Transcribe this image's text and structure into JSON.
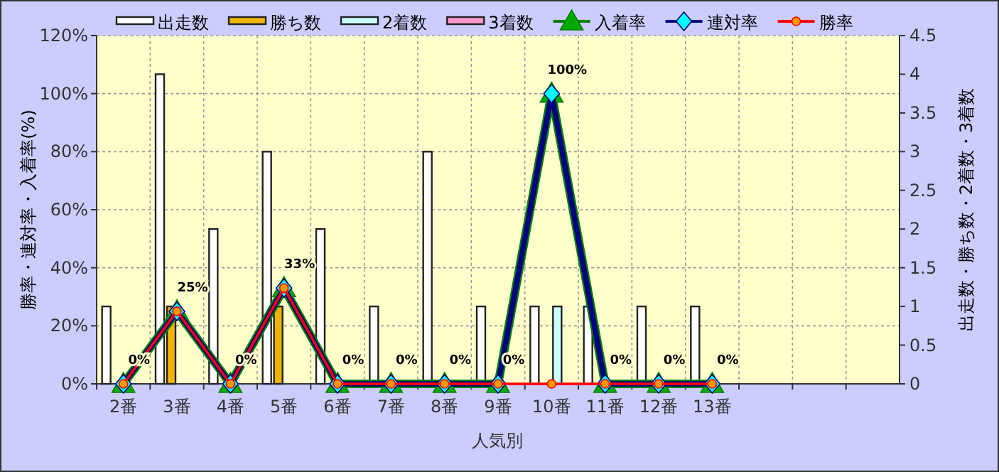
{
  "chart_data": {
    "type": "bar",
    "xlabel": "人気別",
    "ylabel": "勝率・連対率・入着率(%)",
    "y2label": "出走数・勝ち数・2着数・3着数",
    "categories": [
      "2番",
      "3番",
      "4番",
      "5番",
      "6番",
      "7番",
      "8番",
      "9番",
      "10番",
      "11番",
      "12番",
      "13番",
      null,
      null,
      null
    ],
    "ylim": [
      0,
      120
    ],
    "yticks": [
      {
        "value": 0,
        "label": "0%"
      },
      {
        "value": 20,
        "label": "20%"
      },
      {
        "value": 40,
        "label": "40%"
      },
      {
        "value": 60,
        "label": "60%"
      },
      {
        "value": 80,
        "label": "80%"
      },
      {
        "value": 100,
        "label": "100%"
      },
      {
        "value": 120,
        "label": "120%"
      }
    ],
    "y2lim": [
      0,
      4.5
    ],
    "y2ticks": [
      0,
      0.5,
      1,
      1.5,
      2,
      2.5,
      3,
      3.5,
      4,
      4.5
    ],
    "grid": true,
    "legend": "top",
    "series": [
      {
        "name": "出走数",
        "axis": "y2",
        "color": "#ffffff",
        "values": [
          1,
          4,
          2,
          3,
          2,
          1,
          3,
          1,
          1,
          1,
          1,
          1,
          null,
          null,
          null
        ]
      },
      {
        "name": "勝ち数",
        "axis": "y2",
        "color": "#f0b400",
        "values": [
          0,
          1,
          0,
          1,
          0,
          0,
          0,
          0,
          0,
          0,
          0,
          0,
          null,
          null,
          null
        ]
      },
      {
        "name": "2着数",
        "axis": "y2",
        "color": "#ccffff",
        "values": [
          0,
          0,
          0,
          0,
          0,
          0,
          0,
          0,
          1,
          0,
          0,
          0,
          null,
          null,
          null
        ]
      },
      {
        "name": "3着数",
        "axis": "y2",
        "color": "#ff99cc",
        "values": [
          0,
          0,
          0,
          0,
          0,
          0,
          0,
          0,
          0,
          0,
          0,
          0,
          null,
          null,
          null
        ]
      },
      {
        "name": "入着率",
        "type": "line",
        "color": "#008000",
        "marker": "triangle",
        "values": [
          0,
          25,
          0,
          33,
          0,
          0,
          0,
          0,
          100,
          0,
          0,
          0,
          null,
          null,
          null
        ],
        "value_labels": [
          "0%",
          "25%",
          "0%",
          "33%",
          "0%",
          "0%",
          "0%",
          "0%",
          "100%",
          "0%",
          "0%",
          "0%",
          null,
          null,
          null
        ]
      },
      {
        "name": "連対率",
        "type": "line",
        "color": "#000080",
        "marker": "diamond",
        "values": [
          0,
          25,
          0,
          33,
          0,
          0,
          0,
          0,
          100,
          0,
          0,
          0,
          null,
          null,
          null
        ]
      },
      {
        "name": "勝率",
        "type": "line",
        "color": "#ff0000",
        "marker": "circle",
        "values": [
          0,
          25,
          0,
          33,
          0,
          0,
          0,
          0,
          0,
          0,
          0,
          0,
          null,
          null,
          null
        ]
      }
    ]
  }
}
